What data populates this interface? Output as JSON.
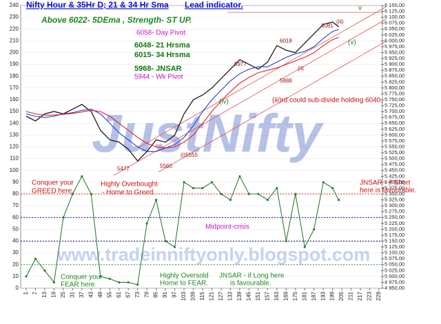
{
  "chart_data": {
    "type": "line",
    "title": "Nifty Hour & 35Hr D; 21 & 34 Hr Sma",
    "subtitle": "Lead indicator.",
    "x": [
      1,
      7,
      13,
      19,
      25,
      31,
      37,
      43,
      49,
      55,
      61,
      67,
      73,
      79,
      85,
      91,
      97,
      103,
      109,
      115,
      121,
      127,
      133,
      139,
      145,
      151,
      157,
      163,
      169,
      175,
      181,
      187,
      193,
      199,
      203
    ],
    "series": [
      {
        "color": "#1a1a1a",
        "axis": "y2",
        "values": [
          5680,
          5660,
          5690,
          5700,
          5690,
          5710,
          5730,
          5700,
          5620,
          5580,
          5570,
          5540,
          5490,
          5530,
          5580,
          5570,
          5600,
          5690,
          5750,
          5770,
          5800,
          5840,
          5880,
          5920,
          5900,
          5880,
          5910,
          5980,
          5960,
          5950,
          5990,
          6030,
          6070,
          6080,
          6060
        ]
      },
      {
        "color": "#1f3fd0",
        "axis": "y2",
        "values": [
          5690,
          5680,
          5675,
          5680,
          5690,
          5695,
          5705,
          5710,
          5690,
          5650,
          5610,
          5580,
          5550,
          5530,
          5530,
          5545,
          5560,
          5590,
          5640,
          5700,
          5750,
          5790,
          5830,
          5860,
          5880,
          5890,
          5890,
          5910,
          5930,
          5945,
          5955,
          5975,
          6010,
          6040,
          6048
        ]
      },
      {
        "color": "#e02020",
        "axis": "y2",
        "values": [
          5700,
          5690,
          5685,
          5685,
          5688,
          5692,
          5698,
          5705,
          5700,
          5680,
          5650,
          5620,
          5590,
          5565,
          5550,
          5545,
          5550,
          5570,
          5600,
          5650,
          5700,
          5745,
          5785,
          5820,
          5845,
          5865,
          5875,
          5885,
          5900,
          5915,
          5930,
          5950,
          5980,
          6005,
          6015
        ]
      },
      {
        "color": "#2e7d32",
        "values": [
          10,
          25,
          15,
          5,
          60,
          80,
          95,
          80,
          10,
          8,
          5,
          5,
          3,
          55,
          75,
          40,
          35,
          90,
          85,
          85,
          90,
          80,
          75,
          95,
          80,
          80,
          75,
          85,
          40,
          80,
          35,
          50,
          90,
          85,
          75
        ]
      }
    ],
    "levels": [
      {
        "value": 80,
        "color": "#e02020"
      },
      {
        "value": 60,
        "color": "#000080"
      },
      {
        "value": 40,
        "color": "#000080"
      },
      {
        "value": 20,
        "color": "#2e9d2e"
      }
    ],
    "xlim": [
      1,
      229
    ],
    "xticks": [
      1,
      7,
      13,
      19,
      25,
      31,
      37,
      43,
      49,
      55,
      61,
      67,
      73,
      79,
      85,
      91,
      97,
      103,
      109,
      115,
      121,
      127,
      133,
      139,
      145,
      151,
      157,
      163,
      169,
      175,
      181,
      187,
      193,
      199,
      205,
      211,
      217,
      223,
      229
    ],
    "ylim": [
      0,
      240
    ],
    "yticks": [
      0,
      10,
      20,
      30,
      40,
      50,
      60,
      70,
      80,
      90,
      100,
      110,
      120,
      130,
      140,
      150,
      160,
      170,
      180,
      190,
      200,
      210,
      220,
      230,
      240
    ],
    "y2lim": [
      4950,
      6150
    ],
    "y2ticks": [
      {
        "value": 4950,
        "label": "4 950,00"
      },
      {
        "value": 4975,
        "label": "4 975,00"
      },
      {
        "value": 5000,
        "label": "5 000,00"
      },
      {
        "value": 5025,
        "label": "5 025,00"
      },
      {
        "value": 5050,
        "label": "5 050,00"
      },
      {
        "value": 5075,
        "label": "5 075,00"
      },
      {
        "value": 5100,
        "label": "5 100,00"
      },
      {
        "value": 5125,
        "label": "5 125,00"
      },
      {
        "value": 5150,
        "label": "5 150,00"
      },
      {
        "value": 5175,
        "label": "5 175,00"
      },
      {
        "value": 5200,
        "label": "5 200,00"
      },
      {
        "value": 5225,
        "label": "5 225,00"
      },
      {
        "value": 5250,
        "label": "5 250,00"
      },
      {
        "value": 5275,
        "label": "5 275,00"
      },
      {
        "value": 5300,
        "label": "5 300,00"
      },
      {
        "value": 5325,
        "label": "5 325,00"
      },
      {
        "value": 5350,
        "label": "5 350,00"
      },
      {
        "value": 5375,
        "label": "5 375,00"
      },
      {
        "value": 5400,
        "label": "5 400,00"
      },
      {
        "value": 5425,
        "label": "5 425,00"
      },
      {
        "value": 5450,
        "label": "5 450,00"
      },
      {
        "value": 5475,
        "label": "5 475,00"
      },
      {
        "value": 5500,
        "label": "5 500,00"
      },
      {
        "value": 5525,
        "label": "5 525,00"
      },
      {
        "value": 5550,
        "label": "5 550,00"
      },
      {
        "value": 5575,
        "label": "5 575,00"
      },
      {
        "value": 5600,
        "label": "5 600,00"
      },
      {
        "value": 5625,
        "label": "5 625,00"
      },
      {
        "value": 5650,
        "label": "5 650,00"
      },
      {
        "value": 5675,
        "label": "5 675,00"
      },
      {
        "value": 5700,
        "label": "5 700,00"
      },
      {
        "value": 5725,
        "label": "5 725,00"
      },
      {
        "value": 5750,
        "label": "5 750,00"
      },
      {
        "value": 5775,
        "label": "5 775,00"
      },
      {
        "value": 5800,
        "label": "5 800,00"
      },
      {
        "value": 5825,
        "label": "5 825,00"
      },
      {
        "value": 5850,
        "label": "5 850,00"
      },
      {
        "value": 5875,
        "label": "5 875,00"
      },
      {
        "value": 5900,
        "label": "5 900,00"
      },
      {
        "value": 5925,
        "label": "5 925,00"
      },
      {
        "value": 5950,
        "label": "5 950,00"
      },
      {
        "value": 5975,
        "label": "5 975,00"
      },
      {
        "value": 6000,
        "label": "6 000,00"
      },
      {
        "value": 6025,
        "label": "6 025,00"
      },
      {
        "value": 6050,
        "label": "6 050,00"
      },
      {
        "value": 6075,
        "label": "6 075,00"
      },
      {
        "value": 6100,
        "label": "6 100,00"
      },
      {
        "value": 6125,
        "label": "6 125,00"
      },
      {
        "value": 6150,
        "label": "6 150,00"
      }
    ],
    "grid": true,
    "watermarks": [
      "JustNifty",
      "www.tradeinniftyonly.blogspot.com"
    ],
    "annotations": [
      "Above 6022-  5DEma ,  Strength- ST  UP.",
      "6058- Day Pivot",
      "6048- 21 Hrsma",
      "6015- 34 Hrsma",
      "5968- JNSAR",
      "5944 - Wk Pivot",
      "(iii)rd could sub-divide holding 6040,",
      "Conquer your",
      "GREED here.",
      "Highly Overbought",
      "- Home to Greed.",
      "JNSAR - if Short",
      "here is favourable.",
      "Midpoint-crisis",
      "Conquer your",
      "FEAR here.",
      "Highly Oversold",
      "Home to FEAR.",
      "JNSAR - if Long here",
      "is favourable.",
      "5477",
      "5560",
      "(i)5555",
      "6081",
      "(iii)",
      "6018",
      "5977",
      "5888",
      "(v)",
      "v",
      "(iv)",
      "(ii)"
    ]
  }
}
